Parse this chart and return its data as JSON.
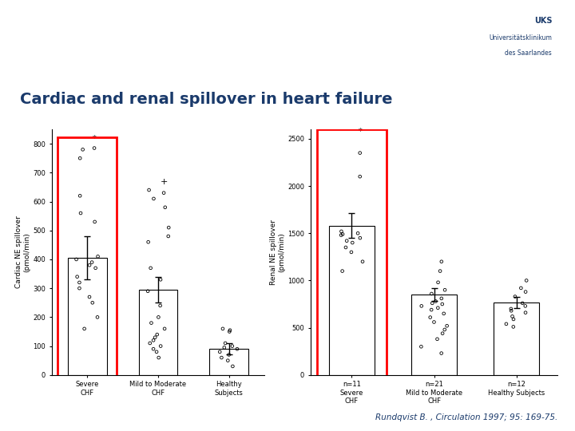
{
  "title": "Cardiac and renal spillover in heart failure",
  "citation": "Rundqvist B. , Circulation 1997; 95: 169-75.",
  "title_color": "#1a3a6b",
  "title_fontsize": 14,
  "bg_top_color": "#c8dff0",
  "bg_main_color": "#ffffff",
  "bg_bottom_color": "#c8dff0",
  "uks_text": "UKS",
  "chart1": {
    "ylabel": "Cardiac NE spillover\n(pmol/min)",
    "ylim": [
      0,
      850
    ],
    "yticks": [
      0,
      100,
      200,
      300,
      400,
      500,
      600,
      700,
      800
    ],
    "bar_means": [
      405,
      295,
      90
    ],
    "bar_errors": [
      75,
      45,
      20
    ],
    "categories": [
      "Severe\nCHF",
      "Mild to Moderate\nCHF",
      "Healthy\nSubjects"
    ],
    "scatter1": [
      160,
      200,
      250,
      270,
      300,
      320,
      340,
      370,
      380,
      390,
      400,
      410,
      530,
      560,
      620,
      750,
      780
    ],
    "scatter2": [
      60,
      80,
      90,
      100,
      110,
      120,
      130,
      140,
      160,
      180,
      200,
      240,
      290,
      330,
      370,
      460,
      480,
      510,
      580,
      610,
      640
    ],
    "scatter3": [
      30,
      50,
      60,
      70,
      80,
      90,
      95,
      100,
      110,
      150,
      155,
      160
    ],
    "outlier1_star": 800,
    "outlier2_plus": 650
  },
  "chart2": {
    "ylabel": "Renal NE spillover\n(pmol/min)",
    "ylim": [
      0,
      2600
    ],
    "yticks": [
      0,
      500,
      1000,
      1500,
      2000,
      2500
    ],
    "bar_means": [
      1580,
      850,
      770
    ],
    "bar_errors": [
      130,
      70,
      60
    ],
    "categories": [
      "n=11\nSevere\nCHF",
      "n=21\nMild to Moderate\nCHF",
      "n=12\nHealthy Subjects"
    ],
    "scatter1": [
      1100,
      1200,
      1300,
      1350,
      1400,
      1420,
      1450,
      1480,
      1490,
      1500,
      1520
    ],
    "scatter2": [
      230,
      300,
      380,
      440,
      480,
      520,
      560,
      610,
      650,
      690,
      710,
      730,
      750,
      760,
      780,
      810,
      860,
      900,
      980,
      1100,
      1200
    ],
    "scatter3": [
      510,
      540,
      590,
      620,
      660,
      680,
      700,
      730,
      760,
      830,
      880,
      920
    ],
    "outlier1_star": 2520,
    "outlier1_circ1": 2350,
    "outlier1_circ2": 2100,
    "outlier3_circ": 1000
  }
}
